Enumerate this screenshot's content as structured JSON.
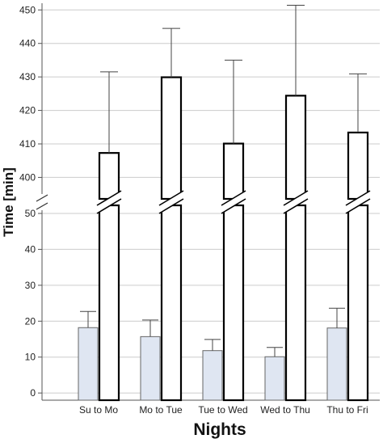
{
  "chart_data": {
    "type": "bar",
    "xlabel": "Nights",
    "ylabel": "Time [min]",
    "categories": [
      "Su to Mo",
      "Mo to Tue",
      "Tue to Wed",
      "Wed to Thu",
      "Thu to Fri"
    ],
    "series": [
      {
        "values": [
          18.2,
          15.7,
          11.8,
          10.1,
          18.1
        ],
        "error": [
          4.5,
          4.6,
          3.1,
          2.6,
          5.5
        ],
        "fill": "#dfe6f2",
        "edge": "#666666"
      },
      {
        "values": [
          407.3,
          429.9,
          410.1,
          424.4,
          413.4
        ],
        "error": [
          24.2,
          14.6,
          24.9,
          27.0,
          17.5
        ],
        "fill": "#ffffff",
        "edge": "#000000"
      }
    ],
    "y_axis_break": {
      "lower_range": [
        -2,
        50
      ],
      "upper_range": [
        396,
        452
      ]
    },
    "y_ticks_lower": [
      0,
      10,
      20,
      30,
      40,
      50
    ],
    "y_ticks_upper": [
      400,
      410,
      420,
      430,
      440,
      450
    ],
    "grid": true,
    "colors": {
      "grid": "#cccccc",
      "axis": "#555555"
    }
  }
}
